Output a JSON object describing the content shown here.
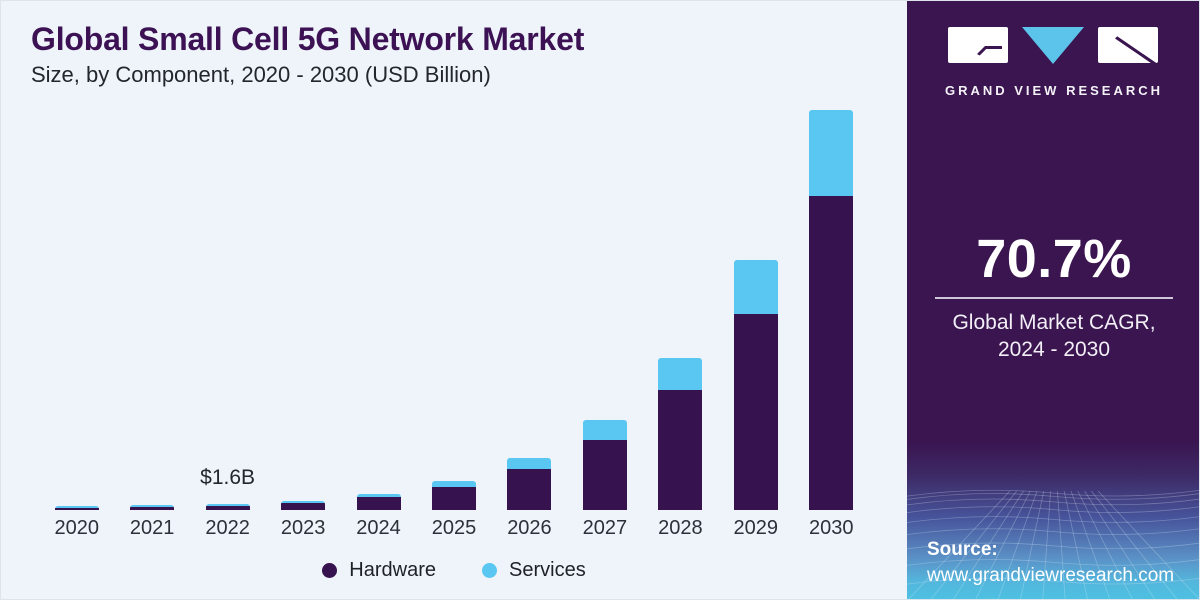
{
  "header": {
    "title": "Global Small Cell 5G Network Market",
    "subtitle": "Size, by Component, 2020 - 2030 (USD Billion)"
  },
  "chart_data": {
    "type": "bar",
    "stacked": true,
    "unit": "USD Billion",
    "categories": [
      "2020",
      "2021",
      "2022",
      "2023",
      "2024",
      "2025",
      "2026",
      "2027",
      "2028",
      "2029",
      "2030"
    ],
    "series": [
      {
        "name": "Hardware",
        "color": "#36124e",
        "values": [
          0.6,
          0.85,
          1.25,
          2.0,
          3.6,
          6.5,
          11.6,
          20.0,
          34.2,
          56.0,
          89.6
        ]
      },
      {
        "name": "Services",
        "color": "#5ac7f3",
        "values": [
          0.2,
          0.25,
          0.35,
          0.6,
          1.0,
          1.8,
          3.3,
          5.7,
          9.2,
          15.4,
          24.7
        ]
      }
    ],
    "totals": [
      0.8,
      1.1,
      1.6,
      2.6,
      4.6,
      8.3,
      14.9,
      25.7,
      43.4,
      71.4,
      114.3
    ],
    "annotation": {
      "text": "$1.6B",
      "category": "2022"
    },
    "xlabel": "",
    "ylabel": "",
    "gridlines": false,
    "legend_position": "bottom"
  },
  "side_panel": {
    "brand": {
      "logo_text": "GRAND VIEW RESEARCH"
    },
    "stat": {
      "value": "70.7%",
      "label_line1": "Global Market CAGR,",
      "label_line2": "2024 - 2030"
    },
    "source": {
      "label": "Source:",
      "url": "www.grandviewresearch.com"
    }
  },
  "colors": {
    "hardware_purple": "#36124e",
    "services_blue": "#5ac7f3",
    "panel_purple": "#3a1550",
    "title_purple": "#3c1254",
    "logo_triangle_blue": "#5cc3ea",
    "chart_background": "#eef4f9",
    "mesh_bottom_cyan": "#4cc2e2"
  }
}
